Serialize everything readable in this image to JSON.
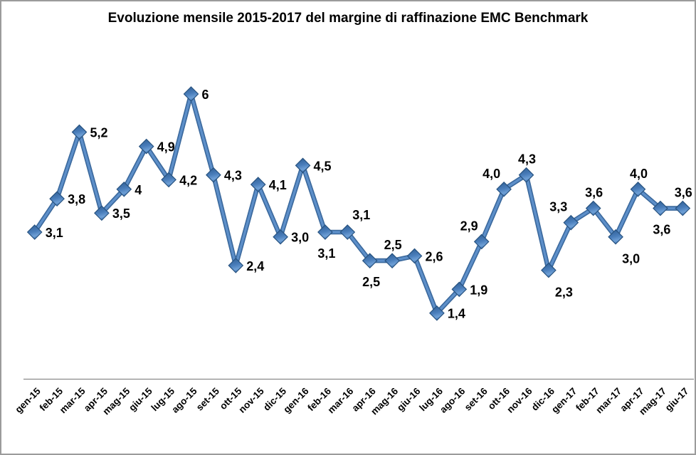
{
  "title": "Evoluzione mensile 2015-2017 del margine di raffinazione EMC Benchmark",
  "chart_data": {
    "type": "line",
    "title": "Evoluzione mensile 2015-2017 del margine di raffinazione EMC Benchmark",
    "categories": [
      "gen-15",
      "feb-15",
      "mar-15",
      "apr-15",
      "mag-15",
      "giu-15",
      "lug-15",
      "ago-15",
      "set-15",
      "ott-15",
      "nov-15",
      "dic-15",
      "gen-16",
      "feb-16",
      "mar-16",
      "apr-16",
      "mag-16",
      "giu-16",
      "lug-16",
      "ago-16",
      "set-16",
      "ott-16",
      "nov-16",
      "dic-16",
      "gen-17",
      "feb-17",
      "mar-17",
      "apr-17",
      "mag-17",
      "giu-17"
    ],
    "values": [
      3.1,
      3.8,
      5.2,
      3.5,
      4,
      4.9,
      4.2,
      6,
      4.3,
      2.4,
      4.1,
      3.0,
      4.5,
      3.1,
      3.1,
      2.5,
      2.5,
      2.6,
      1.4,
      1.9,
      2.9,
      4.0,
      4.3,
      2.3,
      3.3,
      3.6,
      3.0,
      4.0,
      3.6,
      3.6
    ],
    "point_labels": [
      "3,1",
      "3,8",
      "5,2",
      "3,5",
      "4",
      "4,9",
      "4,2",
      "6",
      "4,3",
      "2,4",
      "4,1",
      "3,0",
      "4,5",
      "3,1",
      "3,1",
      "2,5",
      "2,5",
      "2,6",
      "1,4",
      "1,9",
      "2,9",
      "4,0",
      "4,3",
      "2,3",
      "3,3",
      "3,6",
      "3,0",
      "4,0",
      "3,6",
      "3,6"
    ],
    "label_positions": [
      "right",
      "right",
      "right",
      "right",
      "right",
      "right",
      "right",
      "right",
      "right",
      "right",
      "right",
      "right",
      "right",
      "below",
      "above-right",
      "below",
      "above",
      "right",
      "right",
      "right",
      "above-left",
      "above-left",
      "above",
      "below-right",
      "above-left",
      "above",
      "below-right",
      "above",
      "below",
      "above"
    ],
    "xlabel": "",
    "ylabel": "",
    "ylim": [
      0,
      7
    ],
    "grid": false,
    "legend": false,
    "marker": "diamond",
    "line_color": "#4a7ebb",
    "line_edge_color": "#3a689c",
    "line_highlight_color": "#5d8fc9",
    "marker_dark_color": "#2e5d92",
    "marker_light_color": "#6fa0d6",
    "marker_outline_color": "#27527f",
    "data_label_color": "#000000",
    "axis_color": "#8a8a8a"
  }
}
